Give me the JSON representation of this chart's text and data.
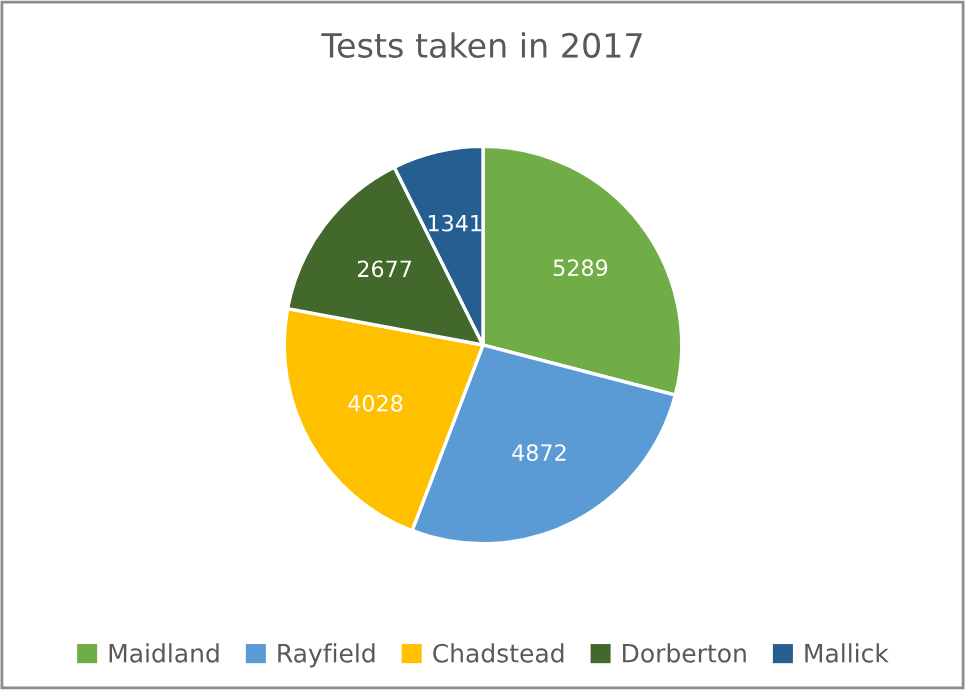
{
  "chart_data": {
    "type": "pie",
    "title": "Tests taken in 2017",
    "categories": [
      "Maidland",
      "Rayfield",
      "Chadstead",
      "Dorberton",
      "Mallick"
    ],
    "values": [
      5289,
      4872,
      4028,
      2677,
      1341
    ],
    "colors": [
      "#70ad47",
      "#5b9bd5",
      "#ffc000",
      "#43682b",
      "#255e91"
    ],
    "data_labels": true,
    "legend": "bottom"
  }
}
